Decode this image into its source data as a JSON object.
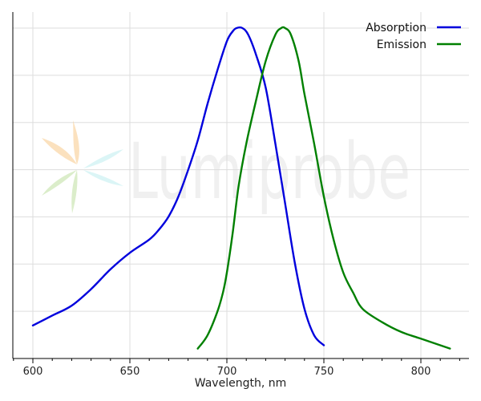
{
  "chart_data": {
    "type": "line",
    "xlabel": "Wavelength, nm",
    "ylabel": "",
    "xlim": [
      589,
      826
    ],
    "ylim": [
      0,
      1.05
    ],
    "x_ticks": [
      600,
      650,
      700,
      750,
      800
    ],
    "x_tick_labels": [
      "600",
      "650",
      "700",
      "750",
      "800"
    ],
    "x_minor_step": 10,
    "y_grid": [
      0.1429,
      0.2857,
      0.4286,
      0.5714,
      0.7143,
      0.8571,
      1.0
    ],
    "grid": true,
    "legend_position": "top-right",
    "watermark": "Lumiprobe",
    "series": [
      {
        "name": "Absorption",
        "color": "#0000dd",
        "x": [
          600,
          610,
          620,
          630,
          640,
          650,
          660,
          665,
          670,
          675,
          680,
          685,
          690,
          695,
          700,
          703,
          705,
          708,
          711,
          715,
          720,
          725,
          730,
          735,
          740,
          745,
          750
        ],
        "y": [
          0.1,
          0.13,
          0.16,
          0.21,
          0.27,
          0.32,
          0.36,
          0.39,
          0.43,
          0.49,
          0.57,
          0.66,
          0.77,
          0.87,
          0.96,
          0.99,
          1.0,
          1.0,
          0.98,
          0.92,
          0.82,
          0.65,
          0.47,
          0.29,
          0.15,
          0.07,
          0.04
        ]
      },
      {
        "name": "Emission",
        "color": "#008000",
        "x": [
          685,
          690,
          695,
          698,
          700,
          703,
          706,
          710,
          715,
          720,
          725,
          728,
          730,
          733,
          737,
          740,
          745,
          750,
          755,
          760,
          765,
          770,
          780,
          790,
          800,
          815
        ],
        "y": [
          0.03,
          0.07,
          0.14,
          0.2,
          0.26,
          0.38,
          0.52,
          0.65,
          0.78,
          0.9,
          0.98,
          1.0,
          1.0,
          0.98,
          0.9,
          0.8,
          0.65,
          0.49,
          0.36,
          0.26,
          0.2,
          0.15,
          0.11,
          0.08,
          0.06,
          0.03
        ]
      }
    ]
  }
}
